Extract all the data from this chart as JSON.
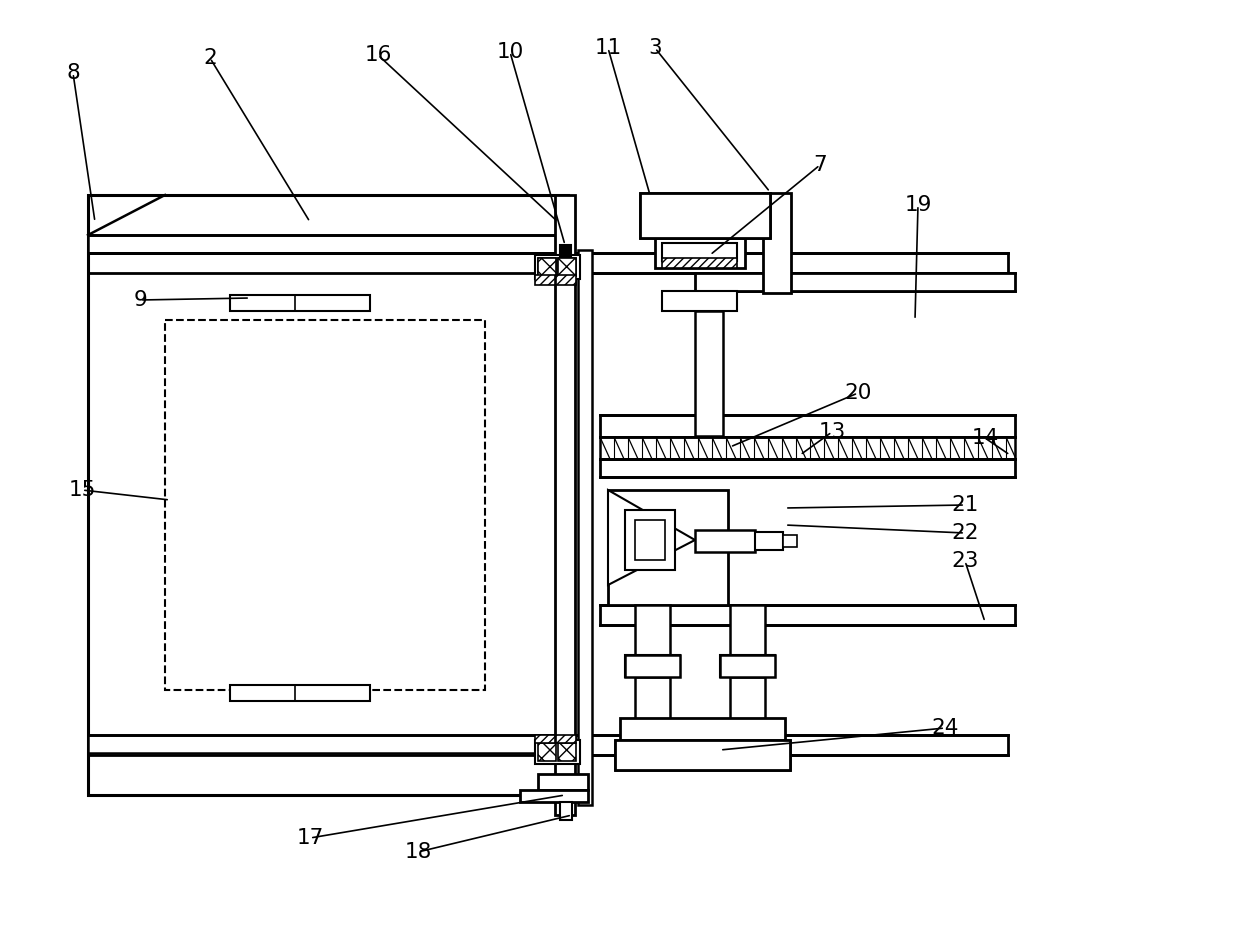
{
  "bg_color": "#ffffff",
  "fig_width": 12.4,
  "fig_height": 9.43,
  "dpi": 100,
  "label_defs": [
    [
      8,
      95,
      222,
      73,
      73
    ],
    [
      2,
      310,
      222,
      210,
      58
    ],
    [
      16,
      558,
      222,
      378,
      55
    ],
    [
      10,
      565,
      245,
      510,
      52
    ],
    [
      11,
      650,
      195,
      608,
      48
    ],
    [
      3,
      770,
      192,
      655,
      48
    ],
    [
      7,
      710,
      255,
      820,
      165
    ],
    [
      19,
      915,
      320,
      918,
      205
    ],
    [
      9,
      250,
      298,
      140,
      300
    ],
    [
      15,
      170,
      500,
      82,
      490
    ],
    [
      20,
      730,
      447,
      858,
      393
    ],
    [
      13,
      800,
      455,
      832,
      432
    ],
    [
      14,
      1010,
      455,
      985,
      438
    ],
    [
      21,
      785,
      508,
      965,
      505
    ],
    [
      22,
      785,
      525,
      965,
      533
    ],
    [
      23,
      985,
      622,
      965,
      561
    ],
    [
      17,
      565,
      795,
      310,
      838
    ],
    [
      18,
      572,
      815,
      418,
      852
    ],
    [
      24,
      720,
      750,
      945,
      728
    ]
  ]
}
